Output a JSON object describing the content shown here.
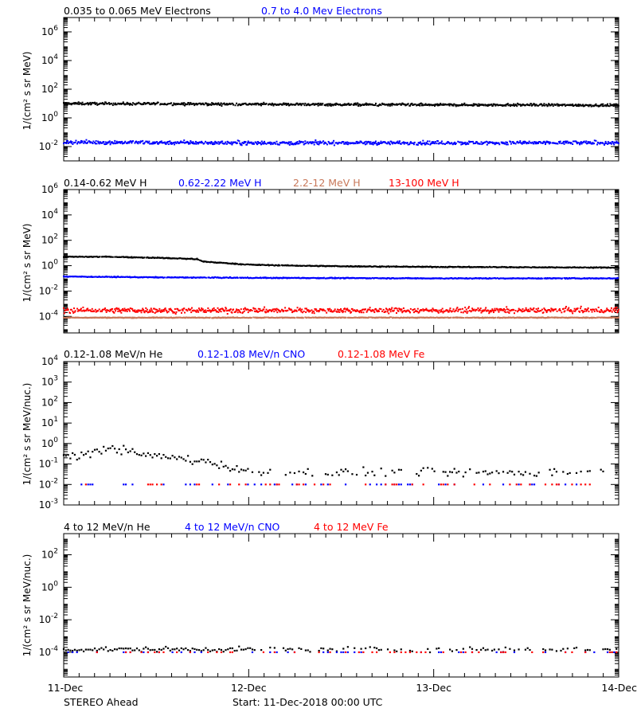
{
  "footer": {
    "left": "STEREO Ahead",
    "start": "Start: 11-Dec-2018 00:00 UTC"
  },
  "x_axis": {
    "ticks": [
      "11-Dec",
      "12-Dec",
      "13-Dec",
      "14-Dec"
    ],
    "range_days": [
      0,
      3
    ]
  },
  "colors": {
    "black": "#000000",
    "blue": "#0000ff",
    "brown": "#c8785a",
    "red": "#ff0000"
  },
  "chart_data": [
    {
      "type": "scatter",
      "panel": 1,
      "ylabel": "1/(cm² s sr MeV)",
      "yscale": "log",
      "ylim": [
        0.001,
        10000000
      ],
      "yticks": [
        {
          "label": "10",
          "exp": "-2",
          "value": 0.01
        },
        {
          "label": "10",
          "exp": "0",
          "value": 1
        },
        {
          "label": "10",
          "exp": "2",
          "value": 100
        },
        {
          "label": "10",
          "exp": "4",
          "value": 10000
        },
        {
          "label": "10",
          "exp": "6",
          "value": 1000000
        }
      ],
      "series": [
        {
          "name": "0.035 to 0.065 MeV Electrons",
          "color": "#000000",
          "x": [
            0,
            0.5,
            1,
            1.5,
            2,
            2.5,
            3
          ],
          "y": [
            10,
            9.5,
            9,
            8.5,
            8,
            8,
            7.5
          ],
          "scatter": 0.15
        },
        {
          "name": "0.7 to 4.0 Mev Electrons",
          "color": "#0000ff",
          "x": [
            0,
            0.5,
            1,
            1.5,
            2,
            2.5,
            3
          ],
          "y": [
            0.02,
            0.019,
            0.018,
            0.018,
            0.018,
            0.018,
            0.018
          ],
          "scatter": 0.22
        }
      ]
    },
    {
      "type": "scatter",
      "panel": 2,
      "ylabel": "1/(cm² s sr MeV)",
      "yscale": "log",
      "ylim": [
        5e-06,
        1000000
      ],
      "yticks": [
        {
          "label": "10",
          "exp": "-4",
          "value": 0.0001
        },
        {
          "label": "10",
          "exp": "-2",
          "value": 0.01
        },
        {
          "label": "10",
          "exp": "0",
          "value": 1
        },
        {
          "label": "10",
          "exp": "2",
          "value": 100
        },
        {
          "label": "10",
          "exp": "4",
          "value": 10000
        },
        {
          "label": "10",
          "exp": "6",
          "value": 1000000
        }
      ],
      "series": [
        {
          "name": "0.14-0.62 MeV H",
          "color": "#000000",
          "x": [
            0,
            0.25,
            0.5,
            0.72,
            0.75,
            1.0,
            1.25,
            1.5,
            2,
            2.5,
            3
          ],
          "y": [
            5,
            5,
            4.2,
            3.3,
            2.1,
            1.2,
            1.0,
            0.9,
            0.8,
            0.75,
            0.7
          ],
          "scatter": 0.06
        },
        {
          "name": "0.62-2.22 MeV H",
          "color": "#0000ff",
          "x": [
            0,
            0.5,
            1,
            1.5,
            2,
            2.5,
            3
          ],
          "y": [
            0.14,
            0.12,
            0.11,
            0.105,
            0.1,
            0.1,
            0.1
          ],
          "scatter": 0.06
        },
        {
          "name": "2.2-12 MeV H",
          "color": "#c8785a",
          "x": [
            0,
            1,
            2,
            3
          ],
          "y": [
            8e-05,
            8e-05,
            8e-05,
            8e-05
          ],
          "scatter": 0.05
        },
        {
          "name": "13-100 MeV H",
          "color": "#ff0000",
          "x": [
            0,
            1,
            2,
            3
          ],
          "y": [
            0.0003,
            0.0003,
            0.0003,
            0.0003
          ],
          "scatter": 0.35
        }
      ]
    },
    {
      "type": "scatter",
      "panel": 3,
      "ylabel": "1/(cm² s sr MeV/nuc.)",
      "yscale": "log",
      "ylim": [
        0.001,
        10000
      ],
      "yticks": [
        {
          "label": "10",
          "exp": "-3",
          "value": 0.001
        },
        {
          "label": "10",
          "exp": "-2",
          "value": 0.01
        },
        {
          "label": "10",
          "exp": "-1",
          "value": 0.1
        },
        {
          "label": "10",
          "exp": "0",
          "value": 1
        },
        {
          "label": "10",
          "exp": "1",
          "value": 10
        },
        {
          "label": "10",
          "exp": "2",
          "value": 100
        },
        {
          "label": "10",
          "exp": "3",
          "value": 1000
        },
        {
          "label": "10",
          "exp": "4",
          "value": 10000
        }
      ],
      "series": [
        {
          "name": "0.12-1.08 MeV/n He",
          "color": "#000000",
          "x": [
            0,
            0.15,
            0.25,
            0.4,
            0.6,
            0.8,
            1.0,
            2.0,
            3.0
          ],
          "y": [
            0.25,
            0.3,
            0.7,
            0.3,
            0.2,
            0.12,
            0.04,
            0.04,
            0.04
          ],
          "scatter": 0.35
        },
        {
          "name": "0.12-1.08 MeV/n CNO",
          "color": "#0000ff",
          "x": [
            0,
            3
          ],
          "y": [
            0.01,
            0.01
          ],
          "scatter": 0.0
        },
        {
          "name": "0.12-1.08 MeV Fe",
          "color": "#ff0000",
          "x": [
            0,
            3
          ],
          "y": [
            0.01,
            0.01
          ],
          "scatter": 0.0
        }
      ]
    },
    {
      "type": "scatter",
      "panel": 4,
      "ylabel": "1/(cm² s sr MeV/nuc.)",
      "yscale": "log",
      "ylim": [
        3e-06,
        2000
      ],
      "yticks": [
        {
          "label": "10",
          "exp": "-4",
          "value": 0.0001
        },
        {
          "label": "10",
          "exp": "-2",
          "value": 0.01
        },
        {
          "label": "10",
          "exp": "0",
          "value": 1
        },
        {
          "label": "10",
          "exp": "2",
          "value": 100
        }
      ],
      "series": [
        {
          "name": "4 to 12 MeV/n He",
          "color": "#000000",
          "x": [
            0,
            3
          ],
          "y": [
            0.00015,
            0.00015
          ],
          "scatter": 0.25
        },
        {
          "name": "4 to 12 MeV/n CNO",
          "color": "#0000ff",
          "x": [
            0,
            3
          ],
          "y": [
            0.0001,
            0.0001
          ],
          "scatter": 0.0
        },
        {
          "name": "4 to 12 MeV Fe",
          "color": "#ff0000",
          "x": [
            0,
            3
          ],
          "y": [
            0.0001,
            0.0001
          ],
          "scatter": 0.0
        }
      ]
    }
  ]
}
